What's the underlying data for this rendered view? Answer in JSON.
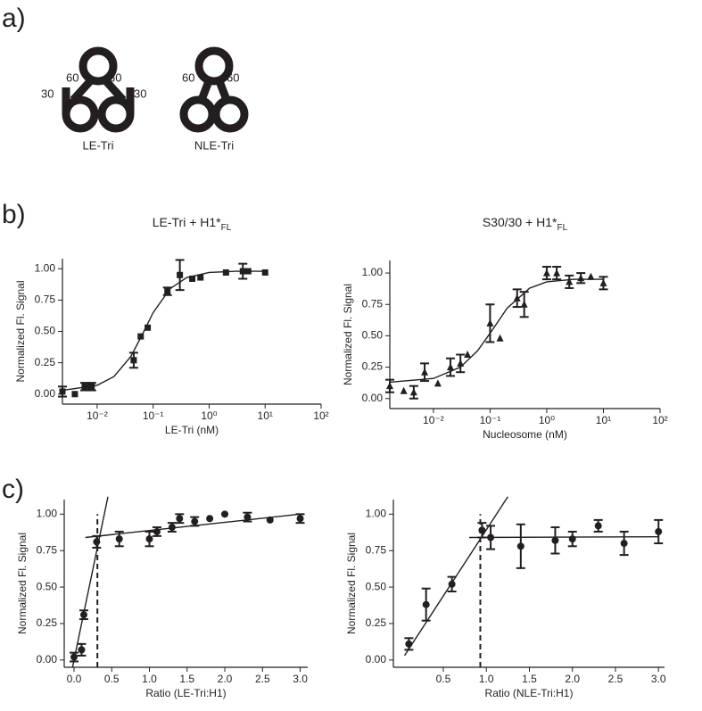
{
  "panel_labels": [
    "a)",
    "b)",
    "c)"
  ],
  "diagram": [
    {
      "name": "LE-Tri",
      "labels": [
        "30",
        "60",
        "60",
        "30"
      ]
    },
    {
      "name": "NLE-Tri",
      "labels": [
        "60",
        "60"
      ]
    }
  ],
  "chart_data": [
    {
      "type": "scatter",
      "title": "LE-Tri + H1*",
      "title_subscript": "FL",
      "xlabel": "LE-Tri (nM)",
      "ylabel": "Normalized Fl. Signal",
      "xlog": true,
      "xlim": [
        0.0024,
        100
      ],
      "ylim": [
        -0.08,
        1.08
      ],
      "xticks": [
        {
          "value": 0.01,
          "label": "10⁻²"
        },
        {
          "value": 0.1,
          "label": "10⁻¹"
        },
        {
          "value": 1,
          "label": "10⁰"
        },
        {
          "value": 10,
          "label": "10¹"
        },
        {
          "value": 100,
          "label": "10²"
        }
      ],
      "yticks": [
        {
          "value": 0,
          "label": "0.00"
        },
        {
          "value": 0.25,
          "label": "0.25"
        },
        {
          "value": 0.5,
          "label": "0.50"
        },
        {
          "value": 0.75,
          "label": "0.75"
        },
        {
          "value": 1,
          "label": "1.00"
        }
      ],
      "series": [
        {
          "marker": "square",
          "color": "#231f20",
          "x": [
            0.0024,
            0.004,
            0.006,
            0.007,
            0.008,
            0.045,
            0.06,
            0.08,
            0.18,
            0.3,
            0.5,
            0.7,
            2,
            4,
            5,
            10
          ],
          "values": [
            0.02,
            0.0,
            0.06,
            0.06,
            0.06,
            0.27,
            0.46,
            0.53,
            0.82,
            0.95,
            0.92,
            0.93,
            0.97,
            0.98,
            0.98,
            0.97
          ],
          "errors": [
            0.04,
            null,
            0.03,
            null,
            0.03,
            0.06,
            null,
            null,
            0.03,
            0.12,
            null,
            null,
            null,
            0.06,
            null,
            null
          ]
        },
        {
          "style": "line",
          "color": "#231f20",
          "x": [
            0.0024,
            0.01,
            0.02,
            0.04,
            0.06,
            0.1,
            0.2,
            0.4,
            1,
            3,
            10
          ],
          "values": [
            0.03,
            0.07,
            0.14,
            0.3,
            0.45,
            0.65,
            0.84,
            0.93,
            0.97,
            0.98,
            0.98
          ]
        }
      ]
    },
    {
      "type": "scatter",
      "title": "S30/30 + H1*",
      "title_subscript": "FL",
      "xlabel": "Nucleosome (nM)",
      "ylabel": "Normalized Fl. Signal",
      "xlog": true,
      "xlim": [
        0.0017,
        100
      ],
      "ylim": [
        -0.08,
        1.1
      ],
      "xticks": [
        {
          "value": 0.01,
          "label": "10⁻²"
        },
        {
          "value": 0.1,
          "label": "10⁻¹"
        },
        {
          "value": 1,
          "label": "10⁰"
        },
        {
          "value": 10,
          "label": "10¹"
        },
        {
          "value": 100,
          "label": "10²"
        }
      ],
      "yticks": [
        {
          "value": 0,
          "label": "0.00"
        },
        {
          "value": 0.25,
          "label": "0.25"
        },
        {
          "value": 0.5,
          "label": "0.50"
        },
        {
          "value": 0.75,
          "label": "0.75"
        },
        {
          "value": 1,
          "label": "1.00"
        }
      ],
      "series": [
        {
          "marker": "triangle",
          "color": "#231f20",
          "x": [
            0.0017,
            0.003,
            0.0045,
            0.007,
            0.012,
            0.02,
            0.03,
            0.04,
            0.1,
            0.15,
            0.3,
            0.4,
            1,
            1.5,
            2.5,
            4,
            6,
            10
          ],
          "values": [
            0.1,
            0.06,
            0.05,
            0.21,
            0.12,
            0.25,
            0.28,
            0.35,
            0.6,
            0.48,
            0.8,
            0.75,
            1.0,
            1.0,
            0.93,
            0.96,
            0.97,
            0.92
          ],
          "errors": [
            0.05,
            null,
            0.05,
            0.07,
            null,
            0.07,
            0.07,
            null,
            0.15,
            null,
            0.07,
            0.1,
            0.05,
            0.05,
            0.05,
            0.04,
            null,
            0.05
          ]
        },
        {
          "style": "line",
          "color": "#231f20",
          "x": [
            0.0017,
            0.01,
            0.03,
            0.06,
            0.1,
            0.2,
            0.5,
            1,
            3,
            10
          ],
          "values": [
            0.13,
            0.16,
            0.25,
            0.38,
            0.52,
            0.72,
            0.88,
            0.93,
            0.95,
            0.95
          ]
        }
      ]
    },
    {
      "type": "scatter",
      "xlabel": "Ratio (LE-Tri:H1)",
      "ylabel": "Normalized Fl. Signal",
      "xlog": false,
      "xlim": [
        -0.13,
        3.1
      ],
      "ylim": [
        -0.05,
        1.1
      ],
      "xticks": [
        {
          "value": 0,
          "label": "0.0"
        },
        {
          "value": 0.5,
          "label": "0.5"
        },
        {
          "value": 1,
          "label": "1.0"
        },
        {
          "value": 1.5,
          "label": "1.5"
        },
        {
          "value": 2,
          "label": "2.0"
        },
        {
          "value": 2.5,
          "label": "2.5"
        },
        {
          "value": 3,
          "label": "3.0"
        }
      ],
      "yticks": [
        {
          "value": 0,
          "label": "0.00"
        },
        {
          "value": 0.25,
          "label": "0.25"
        },
        {
          "value": 0.5,
          "label": "0.50"
        },
        {
          "value": 0.75,
          "label": "0.75"
        },
        {
          "value": 1,
          "label": "1.00"
        }
      ],
      "dropline_x": 0.31,
      "series": [
        {
          "marker": "circle",
          "color": "#231f20",
          "x": [
            0.0,
            0.1,
            0.13,
            0.3,
            0.6,
            1.0,
            1.1,
            1.3,
            1.4,
            1.6,
            1.8,
            2.0,
            2.3,
            2.6,
            3.0
          ],
          "values": [
            0.02,
            0.07,
            0.31,
            0.81,
            0.83,
            0.83,
            0.88,
            0.91,
            0.97,
            0.95,
            0.97,
            1.0,
            0.98,
            0.96,
            0.97
          ],
          "errors": [
            0.03,
            0.04,
            0.03,
            0.04,
            0.05,
            0.05,
            0.03,
            0.03,
            0.03,
            0.03,
            null,
            null,
            0.03,
            null,
            0.03
          ]
        },
        {
          "style": "line",
          "color": "#231f20",
          "x": [
            -0.02,
            0.45
          ],
          "values": [
            -0.05,
            1.12
          ]
        },
        {
          "style": "line",
          "color": "#231f20",
          "x": [
            0.15,
            3.0
          ],
          "values": [
            0.84,
            1.0
          ]
        }
      ]
    },
    {
      "type": "scatter",
      "xlabel": "Ratio (NLE-Tri:H1)",
      "ylabel": "Normalized Fl. Signal",
      "xlog": false,
      "xlim": [
        -0.08,
        3.07
      ],
      "ylim": [
        -0.05,
        1.1
      ],
      "xticks": [
        {
          "value": 0.5,
          "label": "0.5"
        },
        {
          "value": 1,
          "label": "1.0"
        },
        {
          "value": 1.5,
          "label": "1.5"
        },
        {
          "value": 2,
          "label": "2.0"
        },
        {
          "value": 2.5,
          "label": "2.5"
        },
        {
          "value": 3,
          "label": "3.0"
        }
      ],
      "yticks": [
        {
          "value": 0,
          "label": "0.00"
        },
        {
          "value": 0.25,
          "label": "0.25"
        },
        {
          "value": 0.5,
          "label": "0.50"
        },
        {
          "value": 0.75,
          "label": "0.75"
        },
        {
          "value": 1,
          "label": "1.00"
        }
      ],
      "dropline_x": 0.93,
      "series": [
        {
          "marker": "circle",
          "color": "#231f20",
          "x": [
            0.1,
            0.3,
            0.6,
            0.95,
            1.05,
            1.4,
            1.8,
            2.0,
            2.3,
            2.6,
            3.0
          ],
          "values": [
            0.11,
            0.38,
            0.52,
            0.89,
            0.84,
            0.78,
            0.82,
            0.83,
            0.92,
            0.8,
            0.88
          ],
          "errors": [
            0.04,
            0.11,
            0.05,
            0.05,
            0.08,
            0.15,
            0.09,
            0.05,
            0.04,
            0.08,
            0.08
          ]
        },
        {
          "style": "line",
          "color": "#231f20",
          "x": [
            0.05,
            1.25
          ],
          "values": [
            0.03,
            1.12
          ]
        },
        {
          "style": "line",
          "color": "#231f20",
          "x": [
            0.8,
            3.0
          ],
          "values": [
            0.84,
            0.845
          ]
        }
      ]
    }
  ]
}
